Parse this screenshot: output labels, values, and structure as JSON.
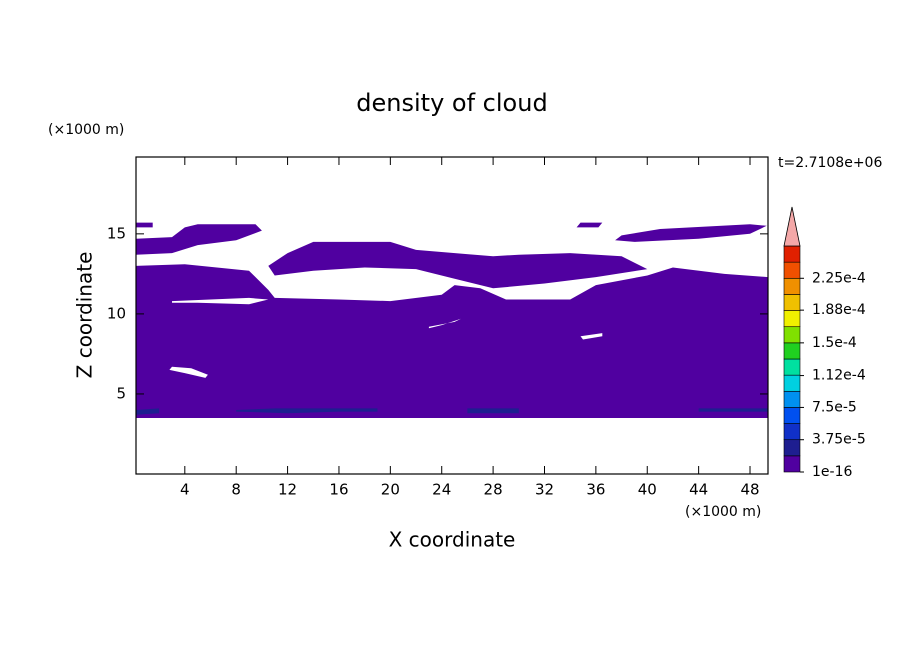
{
  "chart_data": {
    "type": "contour",
    "title": "density of cloud",
    "x_label": "X coordinate",
    "y_label": "Z coordinate",
    "x_unit": "(×1000 m)",
    "y_unit": "(×1000 m)",
    "time_label": "t=2.7108e+06",
    "xlim": [
      0.2,
      49.4
    ],
    "ylim": [
      0,
      19.8
    ],
    "xticks": [
      4,
      8,
      12,
      16,
      20,
      24,
      28,
      32,
      36,
      40,
      44,
      48
    ],
    "yticks": [
      5,
      10,
      15
    ],
    "regions": [
      {
        "color": "#5000a0",
        "x": [
          0.2,
          4,
          9,
          10.5,
          11,
          16,
          20,
          24,
          25,
          27,
          29,
          34,
          36,
          40,
          42,
          46,
          49.4,
          49.4,
          0.2
        ],
        "z": [
          13.0,
          13.1,
          12.7,
          11.5,
          11.0,
          10.9,
          10.8,
          11.2,
          11.8,
          11.6,
          10.9,
          10.9,
          11.8,
          12.4,
          12.9,
          12.5,
          12.3,
          3.5,
          3.5
        ]
      },
      {
        "color": "#5000a0",
        "x": [
          10.5,
          12,
          14,
          20,
          22,
          28,
          30,
          34,
          38,
          40,
          36,
          32,
          28,
          25,
          22,
          18,
          14,
          11
        ],
        "z": [
          13.0,
          13.8,
          14.5,
          14.5,
          14.0,
          13.6,
          13.7,
          13.8,
          13.6,
          12.8,
          12.3,
          11.9,
          11.6,
          12.2,
          12.8,
          12.9,
          12.7,
          12.4
        ]
      },
      {
        "color": "#5000a0",
        "x": [
          0.2,
          0.2,
          3,
          4,
          5,
          9.5,
          10,
          8,
          5,
          3
        ],
        "z": [
          13.7,
          14.7,
          14.8,
          15.4,
          15.6,
          15.6,
          15.2,
          14.6,
          14.3,
          13.8
        ]
      },
      {
        "color": "#5000a0",
        "x": [
          0.2,
          0.2,
          1.5,
          1.5
        ],
        "z": [
          15.4,
          15.7,
          15.7,
          15.4
        ]
      },
      {
        "color": "#5000a0",
        "x": [
          34.5,
          34.8,
          36.5,
          36.2
        ],
        "z": [
          15.4,
          15.7,
          15.7,
          15.4
        ]
      },
      {
        "color": "#5000a0",
        "x": [
          37.5,
          38,
          41,
          48,
          49.3,
          48,
          44,
          39
        ],
        "z": [
          14.6,
          14.9,
          15.3,
          15.6,
          15.5,
          15.0,
          14.7,
          14.5
        ]
      },
      {
        "color": "#ffffff",
        "x": [
          3,
          4.5,
          5.8,
          5.6,
          4,
          2.8
        ],
        "z": [
          6.7,
          6.6,
          6.2,
          6.0,
          6.3,
          6.5
        ]
      },
      {
        "color": "#ffffff",
        "x": [
          3,
          9,
          10.5,
          9,
          5,
          3
        ],
        "z": [
          10.8,
          11.0,
          10.9,
          10.6,
          10.7,
          10.7
        ]
      },
      {
        "color": "#ffffff",
        "x": [
          23,
          25,
          25.5,
          24,
          23
        ],
        "z": [
          9.2,
          9.5,
          9.7,
          9.3,
          9.1
        ]
      },
      {
        "color": "#ffffff",
        "x": [
          34.8,
          36.5,
          36.5,
          35
        ],
        "z": [
          8.6,
          8.8,
          8.6,
          8.4
        ]
      },
      {
        "color": "#1e1e90",
        "x": [
          0.2,
          2,
          2,
          0.2
        ],
        "z": [
          3.7,
          3.8,
          4.1,
          4.0
        ]
      },
      {
        "color": "#1e1e90",
        "x": [
          8,
          12,
          16,
          19,
          19,
          15,
          11,
          8
        ],
        "z": [
          3.9,
          3.8,
          3.9,
          3.9,
          4.1,
          4.1,
          4.1,
          4.0
        ]
      },
      {
        "color": "#1e1e90",
        "x": [
          26,
          30,
          30,
          26
        ],
        "z": [
          3.8,
          3.8,
          4.1,
          4.1
        ]
      },
      {
        "color": "#1e1e90",
        "x": [
          44,
          49.4,
          49.4,
          44
        ],
        "z": [
          3.9,
          3.9,
          4.1,
          4.1
        ]
      }
    ],
    "colorbar": {
      "levels": [
        1e-16,
        1.875e-05,
        3.75e-05,
        5.625e-05,
        7.5e-05,
        9.375e-05,
        0.0001125,
        0.00013125,
        0.00015,
        0.00016875,
        0.0001875,
        0.00020625,
        0.000225,
        0.00024375,
        0.0002625
      ],
      "colors": [
        "#5000a0",
        "#1e1e90",
        "#1030c8",
        "#0050f0",
        "#0090f0",
        "#00d0e0",
        "#00e0a0",
        "#20d020",
        "#80e000",
        "#f0f000",
        "#f0c000",
        "#f09000",
        "#f05000",
        "#e02000"
      ],
      "extend_color": "#f4a8a8",
      "ticks": [
        {
          "value": 1e-16,
          "label": "1e-16"
        },
        {
          "value": 3.75e-05,
          "label": "3.75e-5"
        },
        {
          "value": 7.5e-05,
          "label": "7.5e-5"
        },
        {
          "value": 0.000112,
          "label": "1.12e-4"
        },
        {
          "value": 0.00015,
          "label": "1.5e-4"
        },
        {
          "value": 0.000188,
          "label": "1.88e-4"
        },
        {
          "value": 0.000225,
          "label": "2.25e-4"
        }
      ]
    }
  }
}
